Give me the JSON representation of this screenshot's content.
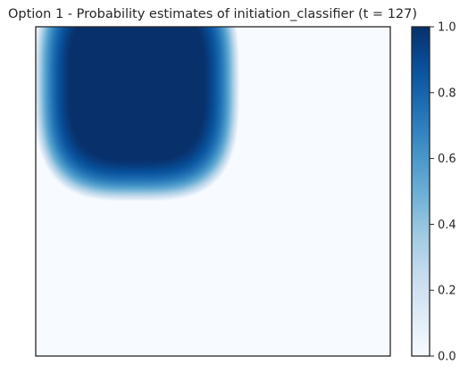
{
  "chart_data": {
    "type": "heatmap",
    "title": "Option 1 - Probability estimates of initiation_classifier (t = 127)",
    "xlabel": "",
    "ylabel": "",
    "x_ticks_visible": false,
    "y_ticks_visible": false,
    "grid": false,
    "colormap": "Blues",
    "colorbar": {
      "range": [
        0.0,
        1.0
      ],
      "ticks": [
        0.0,
        0.2,
        0.4,
        0.6,
        0.8,
        1.0
      ],
      "tick_labels": [
        "0.0",
        "0.2",
        "0.4",
        "0.6",
        "0.8",
        "1.0"
      ],
      "position": "right"
    },
    "field": {
      "description_of_values": "probability estimate in [0,1] over the 2D state space",
      "high_region": "top-left",
      "peak_value": 1.0,
      "background_value": 0.0
    }
  },
  "colors": {
    "background": "#ffffff",
    "frame": "#262626",
    "cmap_low": "#f7fbff",
    "cmap_high": "#08306b"
  }
}
